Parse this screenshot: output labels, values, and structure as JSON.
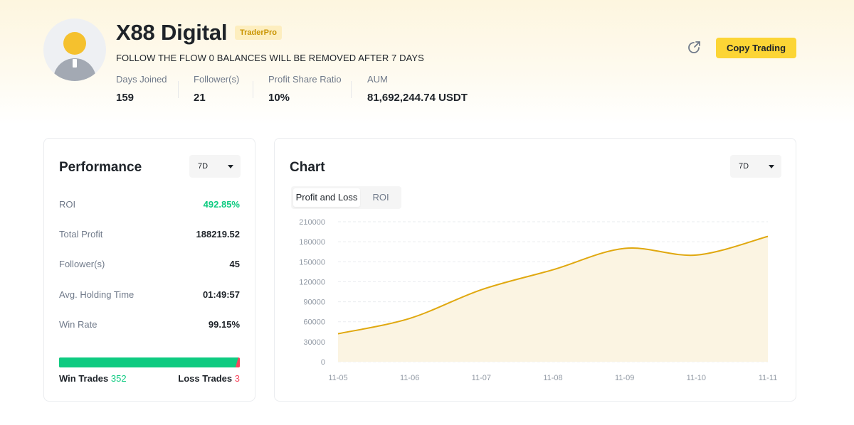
{
  "profile": {
    "name": "X88 Digital",
    "badge": "TraderPro",
    "bio": "FOLLOW THE FLOW 0 BALANCES WILL BE REMOVED AFTER 7 DAYS",
    "stats": [
      {
        "label": "Days Joined",
        "value": "159"
      },
      {
        "label": "Follower(s)",
        "value": "21"
      },
      {
        "label": "Profit Share Ratio",
        "value": "10%"
      },
      {
        "label": "AUM",
        "value": "81,692,244.74 USDT"
      }
    ],
    "share_icon": "share-icon",
    "copy_button": "Copy Trading"
  },
  "performance": {
    "title": "Performance",
    "period": "7D",
    "rows": [
      {
        "label": "ROI",
        "value": "492.85%"
      },
      {
        "label": "Total Profit",
        "value": "188219.52"
      },
      {
        "label": "Follower(s)",
        "value": "45"
      },
      {
        "label": "Avg. Holding Time",
        "value": "01:49:57"
      },
      {
        "label": "Win Rate",
        "value": "99.15%"
      }
    ],
    "win_label": "Win Trades",
    "win_count": "352",
    "loss_label": "Loss Trades",
    "loss_count": "3",
    "win_fraction": 0.9915
  },
  "chart_panel": {
    "title": "Chart",
    "period": "7D",
    "tabs": [
      "Profit and Loss",
      "ROI"
    ],
    "active_tab": "Profit and Loss"
  },
  "colors": {
    "accent": "#fcd535",
    "line": "#e0a80f",
    "area": "#fbf4e2",
    "positive": "#0ecb81",
    "negative": "#f6465d"
  },
  "chart_data": {
    "type": "area",
    "x": [
      "11-05",
      "11-06",
      "11-07",
      "11-08",
      "11-09",
      "11-10",
      "11-11"
    ],
    "series": [
      {
        "values": [
          42000,
          65000,
          108000,
          138000,
          170000,
          160000,
          188000
        ]
      }
    ],
    "yticks": [
      "0",
      "30000",
      "60000",
      "90000",
      "120000",
      "150000",
      "180000",
      "210000"
    ],
    "ylim": [
      0,
      210000
    ],
    "grid": true
  }
}
